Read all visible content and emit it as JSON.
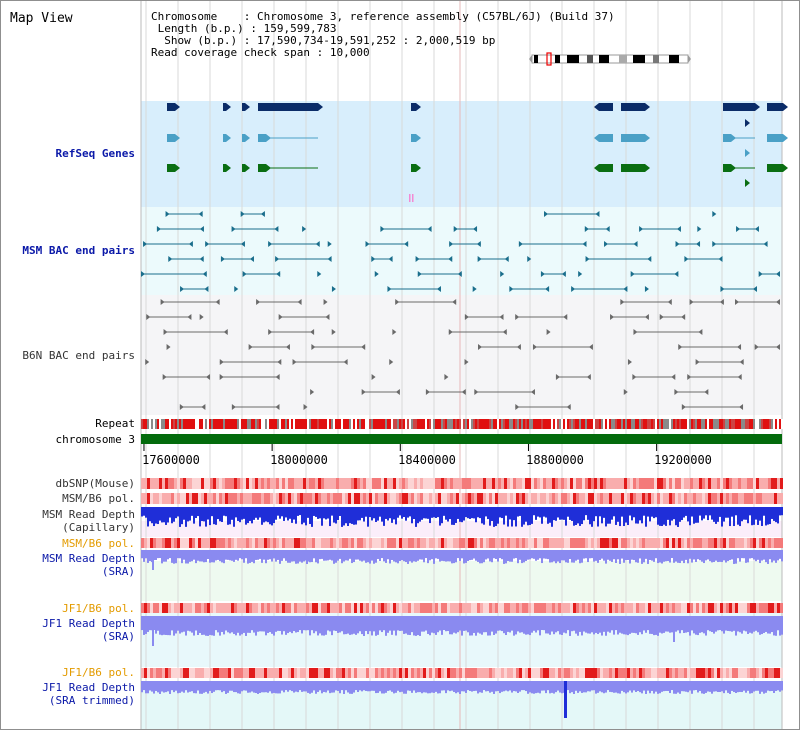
{
  "view": {
    "title": "Map View"
  },
  "info": {
    "chromosome_label": "Chromosome",
    "chromosome_value": "Chromosome 3, reference assembly (C57BL/6J) (Build 37)",
    "length_label": "Length (b.p.)",
    "length_value": "159,599,783",
    "show_label": "Show (b.p.)",
    "show_value": "17,590,734-19,591,252 : 2,000,519 bp",
    "span_label": "Read coverage check span",
    "span_value": "10,000"
  },
  "tracks": {
    "refseq": "RefSeq Genes",
    "msm_bac": "MSM BAC end pairs",
    "b6n_bac": "B6N BAC end pairs",
    "repeat": "Repeat",
    "chrom": "chromosome 3",
    "dbsnp": "dbSNP(Mouse)",
    "msm_b6_pol_1": "MSM/B6 pol.",
    "msm_depth_cap_1": "MSM Read Depth",
    "msm_depth_cap_2": "(Capillary)",
    "msm_b6_pol_2": "MSM/B6 pol.",
    "msm_depth_sra_1": "MSM Read Depth",
    "msm_depth_sra_2": "(SRA)",
    "jf1_b6_pol_1": "JF1/B6 pol.",
    "jf1_depth_sra_1": "JF1 Read Depth",
    "jf1_depth_sra_2": "(SRA)",
    "jf1_b6_pol_2": "JF1/B6 pol.",
    "jf1_depth_trim_1": "JF1 Read Depth",
    "jf1_depth_trim_2": "(SRA trimmed)"
  },
  "axis": {
    "ticks": [
      "17600000",
      "18000000",
      "18400000",
      "18800000",
      "19200000"
    ],
    "tick_values": [
      17600000,
      18000000,
      18400000,
      18800000,
      19200000
    ],
    "start": 17590734,
    "end": 19591252
  },
  "colors": {
    "refseq_bg": "#d8eefc",
    "msm_bac_bg": "#ecfafc",
    "b6n_bac_bg": "#f5f5f7",
    "gene_navy": "#0b2c68",
    "gene_teal": "#4aa0c6",
    "gene_green": "#0a6e12",
    "msm_bac": "#1a6e8c",
    "b6n_bac": "#6a6a6a",
    "chrom": "#036b0c",
    "depth_blue": "#1f2ed8",
    "depth_light": "#8a8af0",
    "label_blue": "#0a18a8",
    "label_orange": "#e39b00"
  }
}
